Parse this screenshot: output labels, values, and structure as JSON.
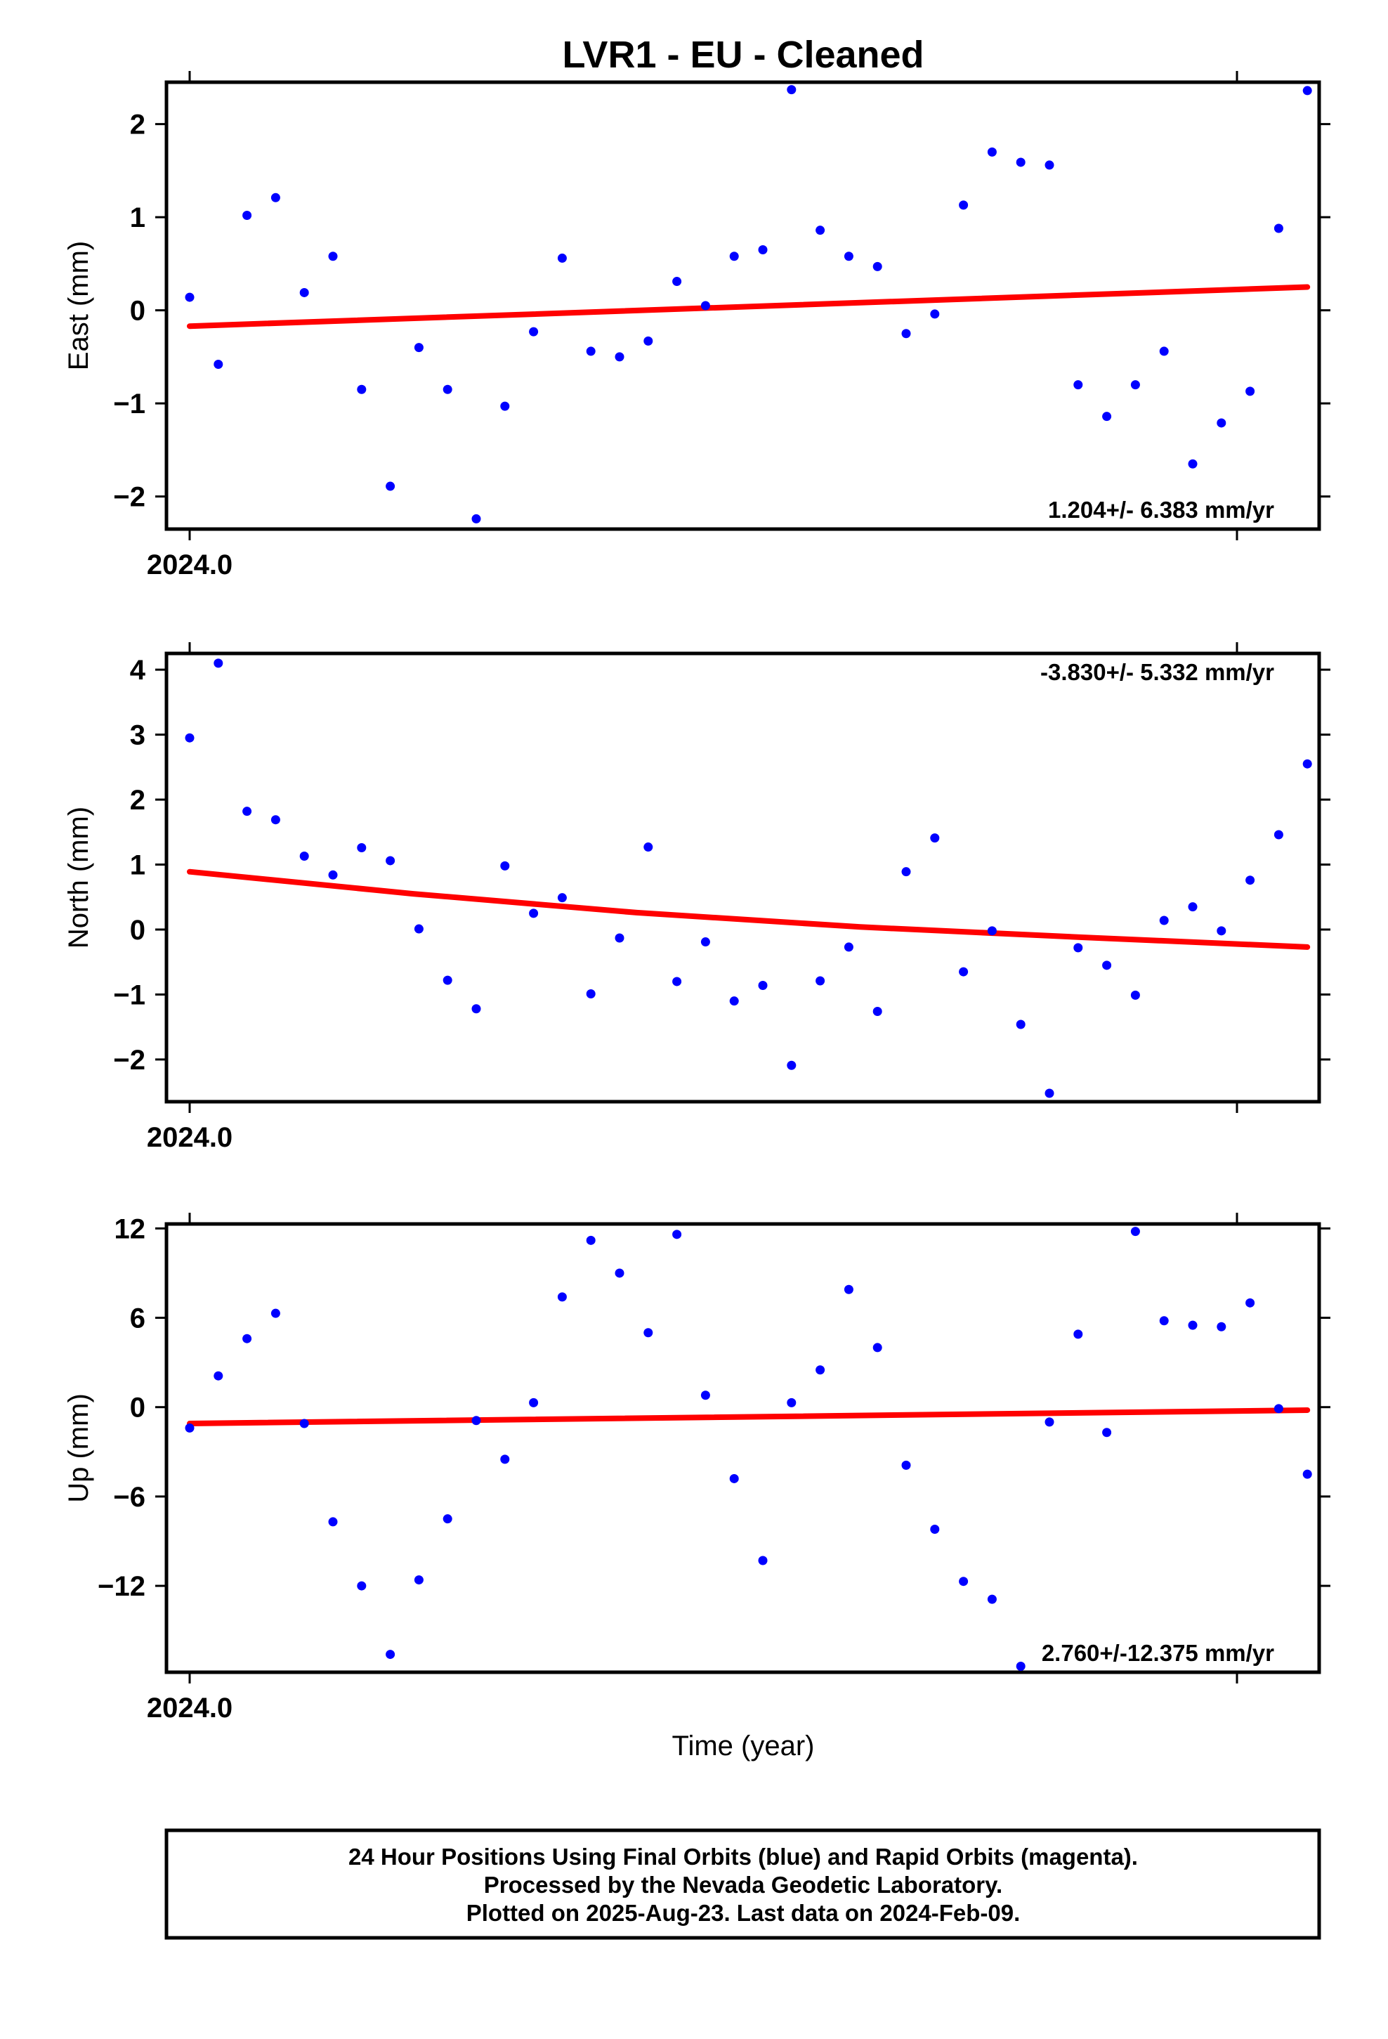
{
  "title": "LVR1  - EU - Cleaned",
  "xlabel": "Time (year)",
  "footer": [
    "24 Hour Positions Using Final Orbits (blue) and Rapid Orbits (magenta).",
    "Processed by the Nevada Geodetic Laboratory.",
    "Plotted on 2025-Aug-23. Last data on 2024-Feb-09."
  ],
  "colors": {
    "points": "#0000ff",
    "trend": "#ff0000",
    "frame": "#000000"
  },
  "chart_data": [
    {
      "type": "scatter",
      "ylabel": "East (mm)",
      "x_tick_label": "2024.0",
      "ylim": [
        -2.35,
        2.45
      ],
      "yticks": [
        2,
        1,
        0,
        -1,
        -2
      ],
      "ytick_labels": [
        "2",
        "1",
        "0",
        "−1",
        "−2"
      ],
      "rate": "1.204+/- 6.383 mm/yr",
      "rate_position": "bottom-right",
      "trend": [
        -0.17,
        0.25
      ],
      "values": [
        0.14,
        -0.58,
        1.02,
        1.21,
        0.19,
        0.58,
        -0.85,
        -1.89,
        -0.4,
        -0.85,
        -2.24,
        -1.03,
        -0.23,
        0.56,
        -0.44,
        -0.5,
        -0.33,
        0.31,
        0.05,
        0.58,
        0.65,
        2.37,
        0.86,
        0.58,
        0.47,
        -0.25,
        -0.04,
        1.13,
        1.7,
        1.59,
        1.56,
        -0.8,
        -1.14,
        -0.8,
        -0.44,
        -1.65,
        -1.21,
        -0.87,
        0.88,
        2.36
      ]
    },
    {
      "type": "scatter",
      "ylabel": "North (mm)",
      "x_tick_label": "2024.0",
      "ylim": [
        -2.65,
        4.25
      ],
      "yticks": [
        4,
        3,
        2,
        1,
        0,
        -1,
        -2
      ],
      "ytick_labels": [
        "4",
        "3",
        "2",
        "1",
        "0",
        "−1",
        "−2"
      ],
      "rate": "-3.830+/- 5.332 mm/yr",
      "rate_position": "top-right",
      "trend": [
        0.89,
        0.55,
        0.26,
        0.04,
        -0.12,
        -0.27
      ],
      "values": [
        2.95,
        4.1,
        1.82,
        1.69,
        1.13,
        0.84,
        1.26,
        1.06,
        0.01,
        -0.78,
        -1.22,
        0.98,
        0.25,
        0.49,
        -0.99,
        -0.13,
        1.27,
        -0.8,
        -0.19,
        -1.1,
        -0.86,
        -2.09,
        -0.79,
        -0.27,
        -1.26,
        0.89,
        1.41,
        -0.65,
        -0.02,
        -1.46,
        -2.52,
        -0.28,
        -0.55,
        -1.01,
        0.14,
        0.35,
        -0.02,
        0.76,
        1.46,
        2.55
      ]
    },
    {
      "type": "scatter",
      "ylabel": "Up (mm)",
      "x_tick_label": "2024.0",
      "ylim": [
        -17.8,
        12.3
      ],
      "yticks": [
        12,
        6,
        0,
        -6,
        -12
      ],
      "ytick_labels": [
        "12",
        "6",
        "0",
        "−6",
        "−12"
      ],
      "rate": "2.760+/-12.375 mm/yr",
      "rate_position": "bottom-right",
      "trend": [
        -1.1,
        -0.2
      ],
      "values": [
        -1.4,
        2.1,
        4.6,
        6.3,
        -1.1,
        -7.7,
        -12.0,
        -16.6,
        -11.6,
        -7.5,
        -0.9,
        -3.5,
        0.3,
        7.4,
        11.2,
        9.0,
        5.0,
        11.6,
        0.8,
        -4.8,
        -10.3,
        0.3,
        2.5,
        7.9,
        4.0,
        -3.9,
        -8.2,
        -11.7,
        -12.9,
        -17.4,
        -1.0,
        4.9,
        -1.7,
        11.8,
        5.8,
        5.5,
        5.4,
        7.0,
        -0.1,
        -4.5
      ]
    }
  ]
}
